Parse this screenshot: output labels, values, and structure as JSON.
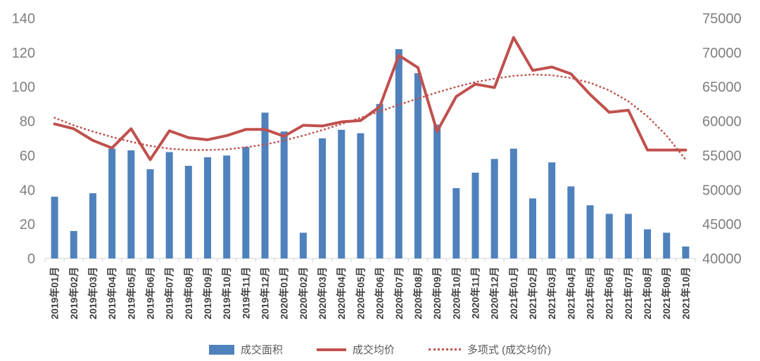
{
  "chart_data": {
    "type": "bar",
    "combo": "bar+line, dual axis",
    "grid": false,
    "legend_position": "bottom",
    "categories": [
      "2019年01月",
      "2019年02月",
      "2019年03月",
      "2019年04月",
      "2019年05月",
      "2019年06月",
      "2019年07月",
      "2019年08月",
      "2019年09月",
      "2019年10月",
      "2019年11月",
      "2019年12月",
      "2020年01月",
      "2020年02月",
      "2020年03月",
      "2020年04月",
      "2020年05月",
      "2020年06月",
      "2020年07月",
      "2020年08月",
      "2020年09月",
      "2020年10月",
      "2020年11月",
      "2020年12月",
      "2021年01月",
      "2021年02月",
      "2021年03月",
      "2021年04月",
      "2021年05月",
      "2021年06月",
      "2021年07月",
      "2021年08月",
      "2021年09月",
      "2021年10月"
    ],
    "series": [
      {
        "name": "成交面积",
        "type": "bar",
        "axis": "left",
        "color": "#4f81bd",
        "values": [
          36,
          16,
          38,
          64,
          63,
          52,
          62,
          54,
          59,
          60,
          65,
          85,
          74,
          15,
          70,
          75,
          73,
          90,
          122,
          108,
          78,
          41,
          50,
          58,
          64,
          35,
          56,
          42,
          31,
          26,
          26,
          17,
          15,
          7
        ]
      },
      {
        "name": "成交均价",
        "type": "line",
        "axis": "right",
        "color": "#c0504d",
        "values": [
          59600,
          58900,
          57200,
          56100,
          58900,
          54400,
          58600,
          57600,
          57300,
          57900,
          58800,
          58800,
          57800,
          59400,
          59300,
          59900,
          60100,
          62100,
          69600,
          67800,
          58500,
          63600,
          65400,
          64900,
          72200,
          67400,
          67900,
          66900,
          63900,
          61300,
          61600,
          55800,
          55800,
          55800
        ]
      },
      {
        "name": "多项式 (成交均价)",
        "type": "dotted-line",
        "axis": "right",
        "color": "#c0504d",
        "values": [
          60500,
          59400,
          58500,
          57700,
          57000,
          56400,
          56000,
          55800,
          55800,
          55900,
          56200,
          56600,
          57200,
          57900,
          58700,
          59600,
          60500,
          61400,
          62400,
          63300,
          64200,
          65000,
          65700,
          66200,
          66600,
          66800,
          66700,
          66300,
          65600,
          64500,
          62900,
          60700,
          57900,
          54400
        ]
      }
    ],
    "left_axis": {
      "min": 0,
      "max": 140,
      "ticks": [
        140,
        120,
        100,
        80,
        60,
        40,
        20,
        0
      ]
    },
    "right_axis": {
      "min": 40000,
      "max": 75000,
      "ticks": [
        75000,
        70000,
        65000,
        60000,
        55000,
        50000,
        45000,
        40000
      ]
    }
  },
  "colors": {
    "axis_label": "#7f7f7f",
    "category_label": "#404040",
    "axis_line": "#d9d9d9",
    "legend_text": "#595959"
  }
}
